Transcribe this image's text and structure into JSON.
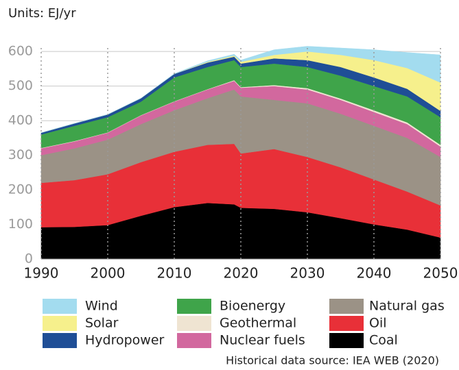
{
  "chart_data": {
    "type": "stacked_area",
    "units": "Units: EJ/yr",
    "source": "Historical data source: IEA WEB (2020)",
    "x": [
      1990,
      1995,
      2000,
      2005,
      2010,
      2015,
      2019,
      2020,
      2025,
      2030,
      2035,
      2040,
      2045,
      2050
    ],
    "xlim": [
      1990,
      2050
    ],
    "xticks": [
      1990,
      2000,
      2010,
      2020,
      2030,
      2040,
      2050
    ],
    "ylim": [
      0,
      620
    ],
    "yticks": [
      0,
      100,
      200,
      300,
      400,
      500,
      600
    ],
    "grid": true,
    "series": [
      {
        "name": "Wind",
        "color": "#a3dcef",
        "values": [
          0,
          0,
          0,
          0,
          1,
          3,
          4,
          5,
          15,
          15,
          20,
          30,
          45,
          80
        ]
      },
      {
        "name": "Solar",
        "color": "#f6f08c",
        "values": [
          0,
          0,
          0,
          0,
          0,
          2,
          3,
          5,
          10,
          25,
          35,
          50,
          60,
          82
        ]
      },
      {
        "name": "Hydropower",
        "color": "#1f4e96",
        "values": [
          5,
          7,
          8,
          10,
          10,
          13,
          10,
          10,
          15,
          20,
          25,
          25,
          22,
          18
        ]
      },
      {
        "name": "Bioenergy",
        "color": "#3fa44a",
        "values": [
          39,
          44,
          44,
          39,
          69,
          64,
          58,
          58,
          62,
          61,
          66,
          70,
          75,
          80
        ]
      },
      {
        "name": "Geothermal",
        "color": "#efe4d2",
        "values": [
          1,
          1,
          1,
          1,
          1,
          1,
          2,
          2,
          3,
          4,
          4,
          5,
          5,
          5
        ]
      },
      {
        "name": "Nuclear fuels",
        "color": "#d2689e",
        "values": [
          20,
          20,
          20,
          25,
          25,
          25,
          25,
          25,
          40,
          40,
          40,
          40,
          40,
          30
        ]
      },
      {
        "name": "Natural gas",
        "color": "#9b9286",
        "values": [
          80,
          92,
          100,
          110,
          120,
          135,
          157,
          165,
          142,
          155,
          155,
          155,
          155,
          140
        ]
      },
      {
        "name": "Oil",
        "color": "#e83038",
        "values": [
          128,
          135,
          147,
          155,
          160,
          168,
          175,
          157,
          173,
          160,
          147,
          130,
          110,
          93
        ]
      },
      {
        "name": "Coal",
        "color": "#000000",
        "values": [
          92,
          93,
          98,
          125,
          150,
          162,
          158,
          148,
          145,
          135,
          118,
          100,
          85,
          62
        ]
      }
    ]
  }
}
